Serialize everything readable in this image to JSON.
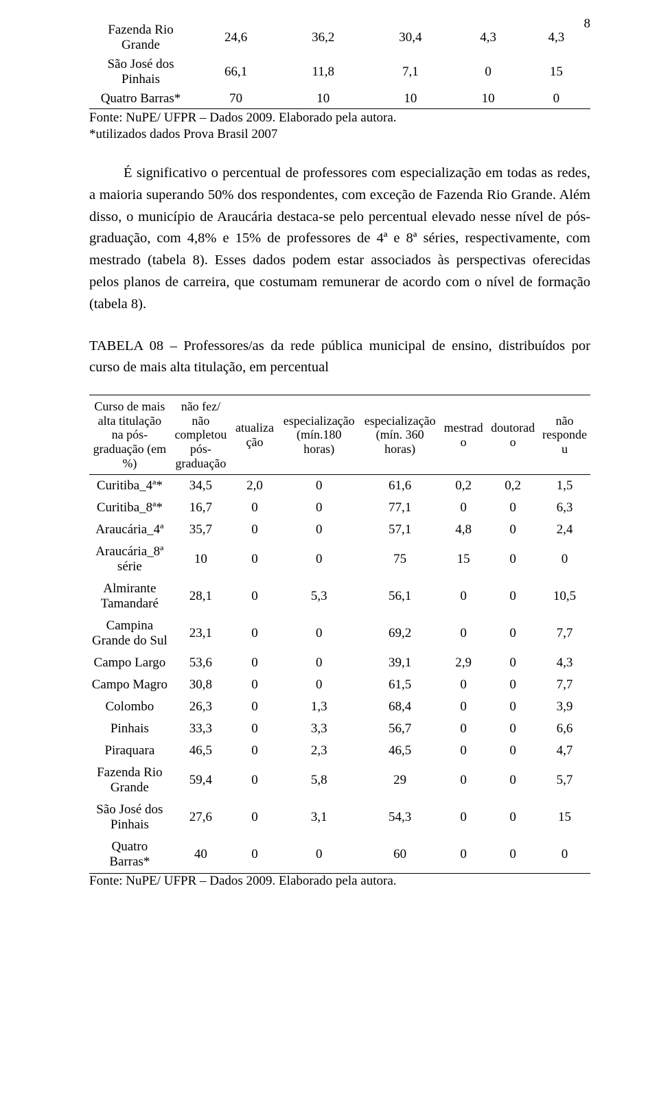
{
  "page_number": "8",
  "top_table": {
    "rows": [
      {
        "label": "Fazenda Rio Grande",
        "v": [
          "24,6",
          "36,2",
          "30,4",
          "4,3",
          "4,3"
        ]
      },
      {
        "label": "São José dos Pinhais",
        "v": [
          "66,1",
          "11,8",
          "7,1",
          "0",
          "15"
        ]
      },
      {
        "label": "Quatro Barras*",
        "v": [
          "70",
          "10",
          "10",
          "10",
          "0"
        ]
      }
    ],
    "source": "Fonte: NuPE/ UFPR – Dados 2009. Elaborado pela autora.",
    "note": "*utilizados dados Prova Brasil 2007"
  },
  "paragraph": "É significativo o percentual de professores com especialização em todas as redes, a maioria superando 50% dos respondentes, com exceção de Fazenda Rio Grande. Além disso, o município de Araucária destaca-se pelo percentual elevado nesse nível de pós-graduação, com 4,8% e 15% de professores de 4ª e 8ª séries, respectivamente, com mestrado (tabela 8). Esses dados podem estar associados às perspectivas oferecidas pelos planos de carreira, que costumam remunerar de acordo com o nível de formação (tabela 8).",
  "caption": "TABELA 08 – Professores/as da rede pública municipal de ensino, distribuídos por curso de mais alta titulação, em percentual",
  "bottom_table": {
    "headers": {
      "c0": "Curso de mais alta titulação na pós-graduação (em %)",
      "c1": "não fez/ não completou pós-graduação",
      "c2": "atualiza ção",
      "c3": "especialização (mín.180 horas)",
      "c4": "especialização (mín. 360 horas)",
      "c5": "mestrad o",
      "c6": "doutorad o",
      "c7": "não responde u"
    },
    "rows": [
      {
        "label": "Curitiba_4ª*",
        "v": [
          "34,5",
          "2,0",
          "0",
          "61,6",
          "0,2",
          "0,2",
          "1,5"
        ]
      },
      {
        "label": "Curitiba_8ª*",
        "v": [
          "16,7",
          "0",
          "0",
          "77,1",
          "0",
          "0",
          "6,3"
        ]
      },
      {
        "label": "Araucária_4ª",
        "v": [
          "35,7",
          "0",
          "0",
          "57,1",
          "4,8",
          "0",
          "2,4"
        ]
      },
      {
        "label": "Araucária_8ª série",
        "v": [
          "10",
          "0",
          "0",
          "75",
          "15",
          "0",
          "0"
        ]
      },
      {
        "label": "Almirante Tamandaré",
        "v": [
          "28,1",
          "0",
          "5,3",
          "56,1",
          "0",
          "0",
          "10,5"
        ]
      },
      {
        "label": "Campina Grande do Sul",
        "v": [
          "23,1",
          "0",
          "0",
          "69,2",
          "0",
          "0",
          "7,7"
        ]
      },
      {
        "label": "Campo Largo",
        "v": [
          "53,6",
          "0",
          "0",
          "39,1",
          "2,9",
          "0",
          "4,3"
        ]
      },
      {
        "label": "Campo Magro",
        "v": [
          "30,8",
          "0",
          "0",
          "61,5",
          "0",
          "0",
          "7,7"
        ]
      },
      {
        "label": "Colombo",
        "v": [
          "26,3",
          "0",
          "1,3",
          "68,4",
          "0",
          "0",
          "3,9"
        ]
      },
      {
        "label": "Pinhais",
        "v": [
          "33,3",
          "0",
          "3,3",
          "56,7",
          "0",
          "0",
          "6,6"
        ]
      },
      {
        "label": "Piraquara",
        "v": [
          "46,5",
          "0",
          "2,3",
          "46,5",
          "0",
          "0",
          "4,7"
        ]
      },
      {
        "label": "Fazenda Rio Grande",
        "v": [
          "59,4",
          "0",
          "5,8",
          "29",
          "0",
          "0",
          "5,7"
        ]
      },
      {
        "label": "São José dos Pinhais",
        "v": [
          "27,6",
          "0",
          "3,1",
          "54,3",
          "0",
          "0",
          "15"
        ]
      },
      {
        "label": "Quatro Barras*",
        "v": [
          "40",
          "0",
          "0",
          "60",
          "0",
          "0",
          "0"
        ]
      }
    ],
    "source": "Fonte: NuPE/ UFPR – Dados 2009. Elaborado pela autora."
  }
}
